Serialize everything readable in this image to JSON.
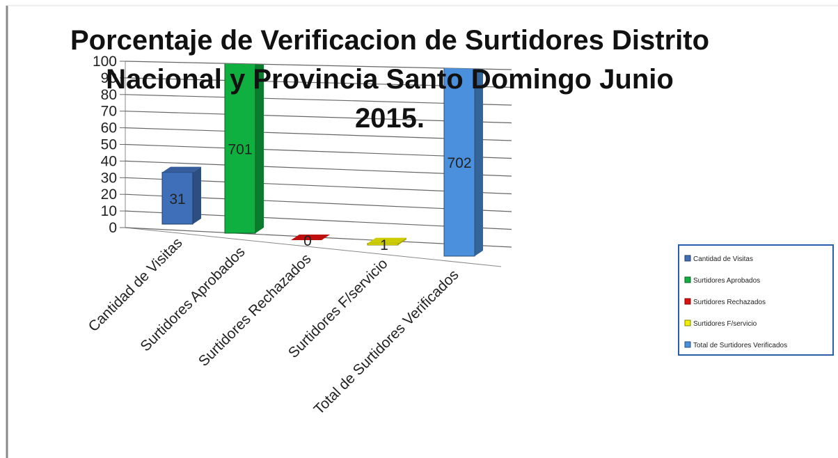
{
  "chart_data": {
    "type": "bar3d",
    "title": "Porcentaje de Verificacion de Surtidores Distrito Nacional  y Provincia Santo Domingo Junio 2015.",
    "categories": [
      "Cantidad de Visitas",
      "Surtidores Aprobados",
      "Surtidores Rechazados",
      "Surtidores F/servicio",
      "Total de Surtidores Verificados"
    ],
    "values": [
      31,
      701,
      0,
      1,
      702
    ],
    "colors": [
      "#3f6fb8",
      "#10b040",
      "#e01010",
      "#f0f000",
      "#4a90dc"
    ],
    "ylim": [
      0,
      100
    ],
    "yticks": [
      0,
      10,
      20,
      30,
      40,
      50,
      60,
      70,
      80,
      90,
      100
    ],
    "grid": true,
    "legend": "right"
  }
}
